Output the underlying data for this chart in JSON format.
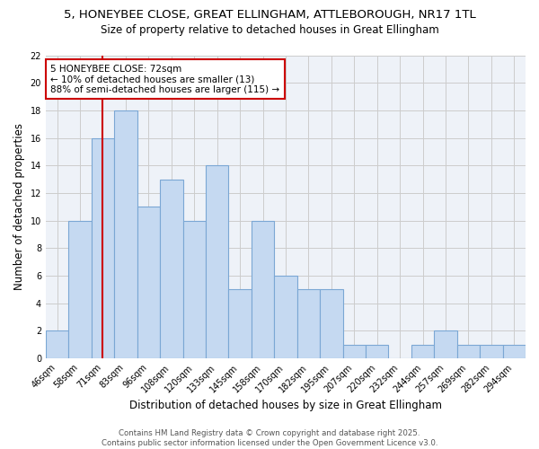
{
  "title_line1": "5, HONEYBEE CLOSE, GREAT ELLINGHAM, ATTLEBOROUGH, NR17 1TL",
  "title_line2": "Size of property relative to detached houses in Great Ellingham",
  "xlabel": "Distribution of detached houses by size in Great Ellingham",
  "ylabel": "Number of detached properties",
  "categories": [
    "46sqm",
    "58sqm",
    "71sqm",
    "83sqm",
    "96sqm",
    "108sqm",
    "120sqm",
    "133sqm",
    "145sqm",
    "158sqm",
    "170sqm",
    "182sqm",
    "195sqm",
    "207sqm",
    "220sqm",
    "232sqm",
    "244sqm",
    "257sqm",
    "269sqm",
    "282sqm",
    "294sqm"
  ],
  "values": [
    2,
    10,
    16,
    18,
    11,
    13,
    10,
    14,
    5,
    10,
    6,
    5,
    5,
    1,
    1,
    0,
    1,
    2,
    1,
    1,
    1
  ],
  "bar_color": "#c5d9f1",
  "bar_edge_color": "#7ba7d4",
  "vline_x": 2,
  "vline_color": "#cc0000",
  "annotation_text": "5 HONEYBEE CLOSE: 72sqm\n← 10% of detached houses are smaller (13)\n88% of semi-detached houses are larger (115) →",
  "annotation_box_color": "white",
  "annotation_box_edge_color": "#cc0000",
  "ylim": [
    0,
    22
  ],
  "yticks": [
    0,
    2,
    4,
    6,
    8,
    10,
    12,
    14,
    16,
    18,
    20,
    22
  ],
  "grid_color": "#cccccc",
  "background_color": "#ffffff",
  "plot_bg_color": "#eef2f8",
  "footer_line1": "Contains HM Land Registry data © Crown copyright and database right 2025.",
  "footer_line2": "Contains public sector information licensed under the Open Government Licence v3.0.",
  "title_fontsize": 9.5,
  "subtitle_fontsize": 8.5,
  "axis_label_fontsize": 8.5,
  "tick_fontsize": 7,
  "annotation_fontsize": 7.5,
  "footer_fontsize": 6.2
}
